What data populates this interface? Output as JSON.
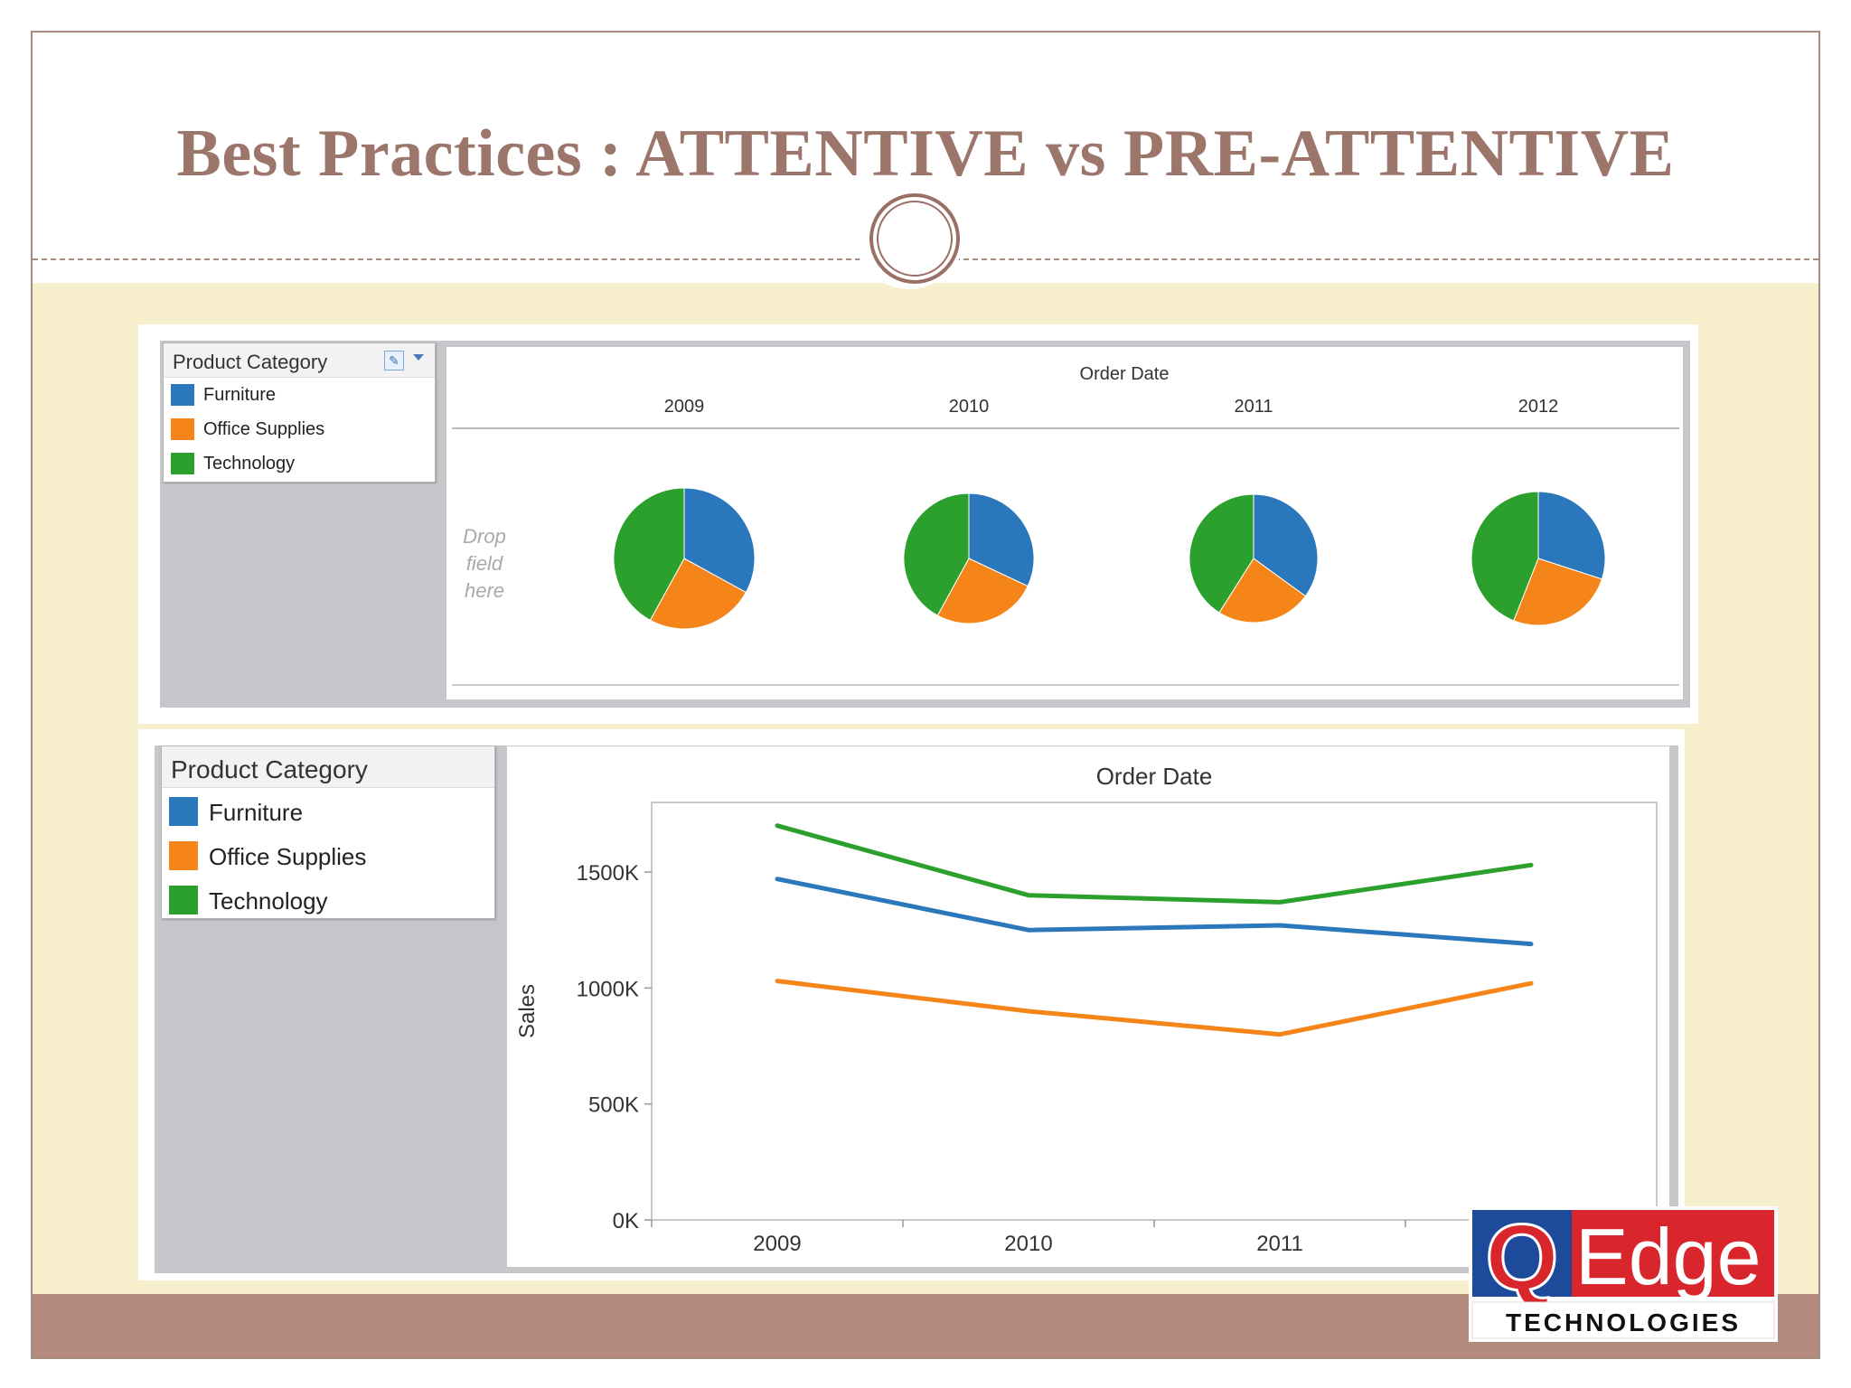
{
  "slide": {
    "title": "Best Practices : ATTENTIVE vs PRE-ATTENTIVE"
  },
  "legend": {
    "title": "Product Category",
    "items": [
      {
        "label": "Furniture",
        "color": "#2a77bb"
      },
      {
        "label": "Office Supplies",
        "color": "#f58518"
      },
      {
        "label": "Technology",
        "color": "#2ca02c"
      }
    ]
  },
  "pie_view": {
    "drop_hint": [
      "Drop",
      "field",
      "here"
    ]
  },
  "logo": {
    "letter_q": "Q",
    "word_edge": "Edge",
    "tagline": "TECHNOLOGIES"
  },
  "chart_data": [
    {
      "type": "pie",
      "column_header": "Order Date",
      "categories": [
        "Furniture",
        "Office Supplies",
        "Technology"
      ],
      "colors": [
        "#2a77bb",
        "#f58518",
        "#2ca02c"
      ],
      "panels": [
        {
          "label": "2009",
          "values": [
            0.33,
            0.25,
            0.42
          ]
        },
        {
          "label": "2010",
          "values": [
            0.32,
            0.26,
            0.42
          ]
        },
        {
          "label": "2011",
          "values": [
            0.35,
            0.24,
            0.41
          ]
        },
        {
          "label": "2012",
          "values": [
            0.3,
            0.26,
            0.44
          ]
        }
      ]
    },
    {
      "type": "line",
      "title": "Order Date",
      "xlabel": "",
      "ylabel": "Sales",
      "x": [
        "2009",
        "2010",
        "2011",
        "2012"
      ],
      "ylim": [
        0,
        1800000
      ],
      "yticks": [
        0,
        500000,
        1000000,
        1500000
      ],
      "ytick_labels": [
        "0K",
        "500K",
        "1000K",
        "1500K"
      ],
      "grid": false,
      "legend": "left panel",
      "series": [
        {
          "name": "Furniture",
          "color": "#2a77bb",
          "values": [
            1470000,
            1250000,
            1270000,
            1190000
          ]
        },
        {
          "name": "Office Supplies",
          "color": "#f58518",
          "values": [
            1030000,
            900000,
            800000,
            1020000
          ]
        },
        {
          "name": "Technology",
          "color": "#2ca02c",
          "values": [
            1700000,
            1400000,
            1370000,
            1530000
          ]
        }
      ]
    }
  ]
}
